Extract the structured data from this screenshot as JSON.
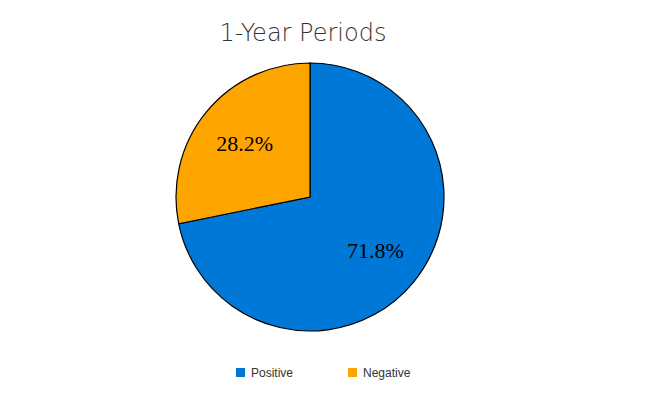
{
  "chart_data": {
    "type": "pie",
    "title": "1-Year Periods",
    "categories": [
      "Positive",
      "Negative"
    ],
    "values": [
      71.8,
      28.2
    ],
    "value_labels": [
      "71.8%",
      "28.2%"
    ],
    "colors": [
      "#0078d7",
      "#ffa500"
    ],
    "data_labels": true,
    "legend": "bottom"
  }
}
